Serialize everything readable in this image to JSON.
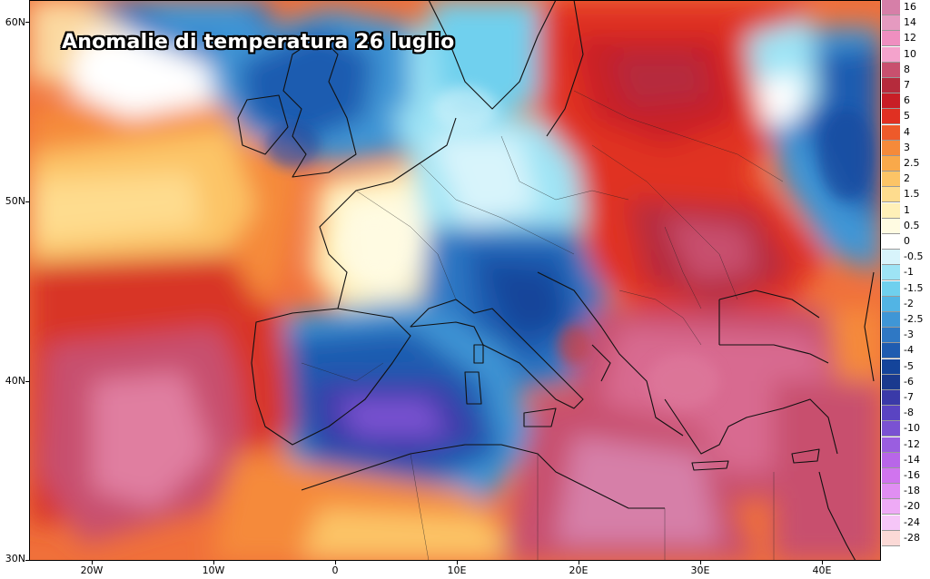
{
  "title": "Anomalie di temperatura 26 luglio",
  "y_axis": [
    "60N",
    "50N",
    "40N",
    "30N"
  ],
  "x_axis": [
    "20W",
    "10W",
    "0",
    "10E",
    "20E",
    "30E",
    "40E"
  ],
  "legend": [
    {
      "label": "16",
      "color": "#d67fa8"
    },
    {
      "label": "14",
      "color": "#e59ac0"
    },
    {
      "label": "12",
      "color": "#ef8fc0"
    },
    {
      "label": "10",
      "color": "#f4a3cc"
    },
    {
      "label": "8",
      "color": "#c8506e"
    },
    {
      "label": "7",
      "color": "#b52b3c"
    },
    {
      "label": "6",
      "color": "#c81e26"
    },
    {
      "label": "5",
      "color": "#e03022"
    },
    {
      "label": "4",
      "color": "#ee5a2a"
    },
    {
      "label": "3",
      "color": "#f58a3a"
    },
    {
      "label": "2.5",
      "color": "#f9a94a"
    },
    {
      "label": "2",
      "color": "#fcc466"
    },
    {
      "label": "1.5",
      "color": "#fedc8e"
    },
    {
      "label": "1",
      "color": "#fff0b8"
    },
    {
      "label": "0.5",
      "color": "#fffbe2"
    },
    {
      "label": "0",
      "color": "#ffffff"
    },
    {
      "label": "-0.5",
      "color": "#d8f4fb"
    },
    {
      "label": "-1",
      "color": "#9ee4f5"
    },
    {
      "label": "-1.5",
      "color": "#6fd0ee"
    },
    {
      "label": "-2",
      "color": "#52b4e4"
    },
    {
      "label": "-2.5",
      "color": "#3f96d6"
    },
    {
      "label": "-3",
      "color": "#2f78c4"
    },
    {
      "label": "-4",
      "color": "#1f5cb0"
    },
    {
      "label": "-5",
      "color": "#14449a"
    },
    {
      "label": "-6",
      "color": "#1a3a8e"
    },
    {
      "label": "-7",
      "color": "#3a3aa8"
    },
    {
      "label": "-8",
      "color": "#5a44c2"
    },
    {
      "label": "-10",
      "color": "#7a52d2"
    },
    {
      "label": "-12",
      "color": "#9a5ee0"
    },
    {
      "label": "-14",
      "color": "#b866e8"
    },
    {
      "label": "-16",
      "color": "#d074ee"
    },
    {
      "label": "-18",
      "color": "#e08ef2"
    },
    {
      "label": "-20",
      "color": "#eeaaf6"
    },
    {
      "label": "-24",
      "color": "#f6c6f8"
    },
    {
      "label": "-28",
      "color": "#fbd9d6"
    }
  ]
}
